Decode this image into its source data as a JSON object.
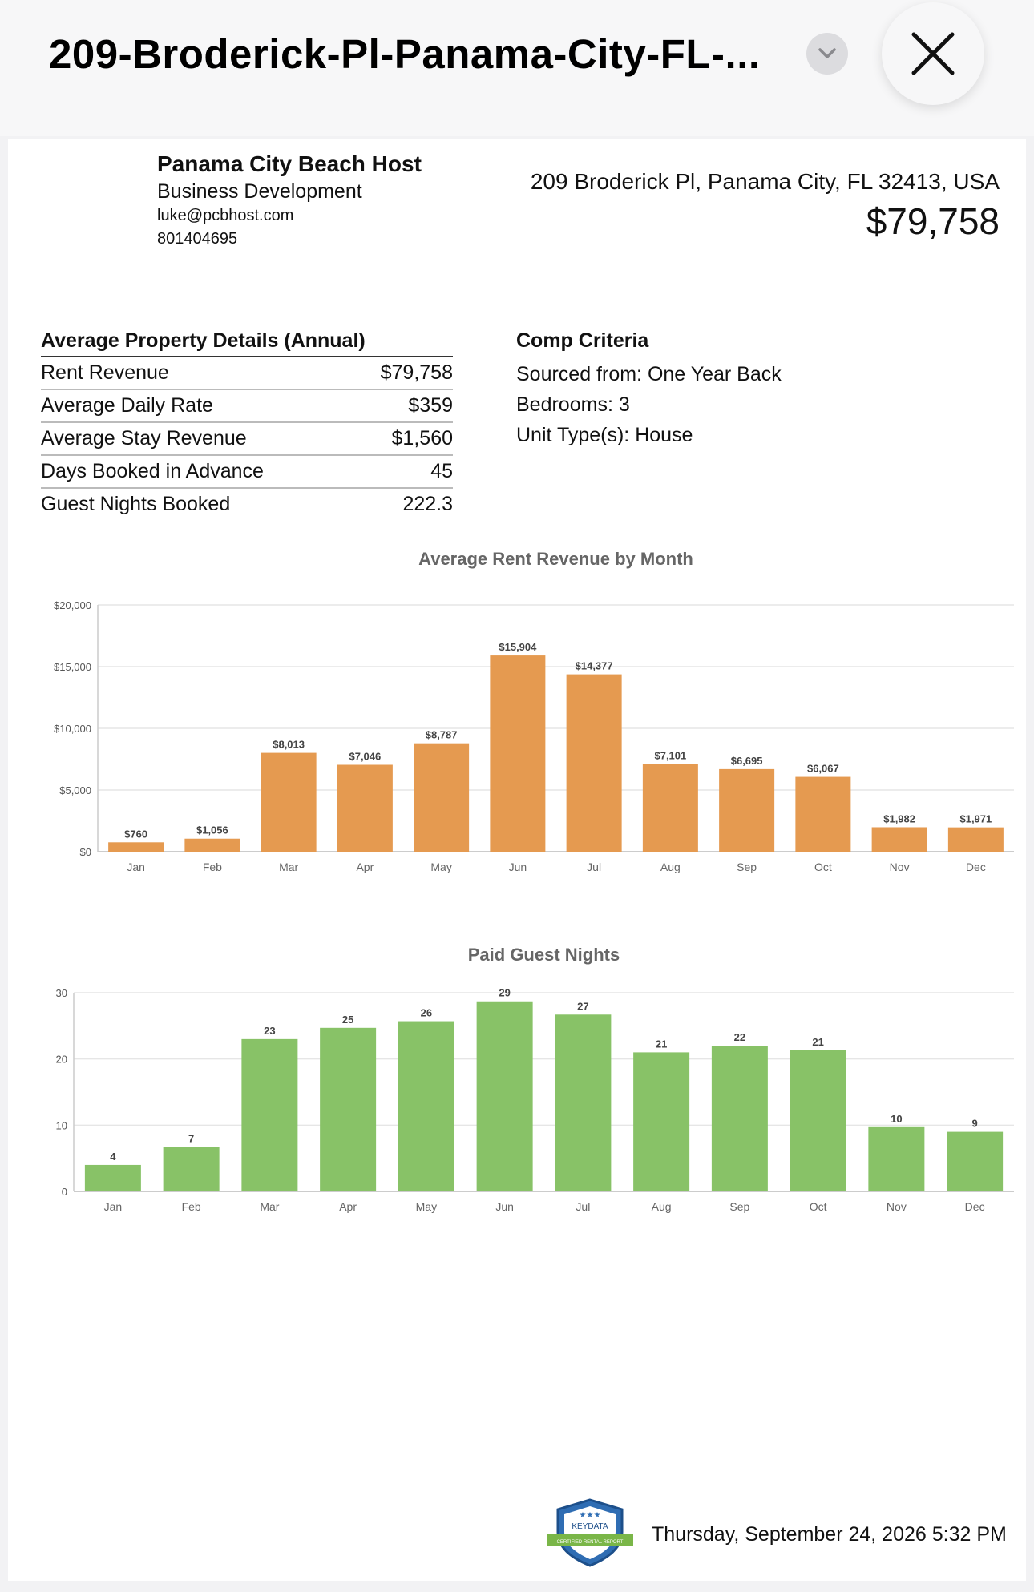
{
  "topbar": {
    "title": "209-Broderick-Pl-Panama-City-FL-...",
    "chevron_icon": "chevron-down-icon",
    "close_icon": "close-icon"
  },
  "header": {
    "host_name": "Panama City Beach Host",
    "host_role": "Business Development",
    "email": "luke@pcbhost.com",
    "phone": "801404695",
    "address": "209 Broderick Pl, Panama City, FL 32413, USA",
    "price": "$79,758"
  },
  "details": {
    "heading": "Average Property Details (Annual)",
    "rows": [
      {
        "label": "Rent Revenue",
        "value": "$79,758"
      },
      {
        "label": "Average Daily Rate",
        "value": "$359"
      },
      {
        "label": "Average Stay Revenue",
        "value": "$1,560"
      },
      {
        "label": "Days Booked in Advance",
        "value": "45"
      },
      {
        "label": "Guest Nights Booked",
        "value": "222.3"
      }
    ]
  },
  "criteria": {
    "heading": "Comp Criteria",
    "sourced": "Sourced from: One Year Back",
    "bedrooms": "Bedrooms: 3",
    "unit_type": "Unit Type(s):  House"
  },
  "chart_data": [
    {
      "type": "bar",
      "title": "Average Rent Revenue by Month",
      "categories": [
        "Jan",
        "Feb",
        "Mar",
        "Apr",
        "May",
        "Jun",
        "Jul",
        "Aug",
        "Sep",
        "Oct",
        "Nov",
        "Dec"
      ],
      "values": [
        760,
        1056,
        8013,
        7046,
        8787,
        15904,
        14377,
        7101,
        6695,
        6067,
        1982,
        1971
      ],
      "value_labels": [
        "$760",
        "$1,056",
        "$8,013",
        "$7,046",
        "$8,787",
        "$15,904",
        "$14,377",
        "$7,101",
        "$6,695",
        "$6,067",
        "$1,982",
        "$1,971"
      ],
      "yticks": [
        "$0",
        "$5,000",
        "$10,000",
        "$15,000",
        "$20,000"
      ],
      "ylim": [
        0,
        20000
      ],
      "color": "#e59a50",
      "grid": true
    },
    {
      "type": "bar",
      "title": "Paid Guest Nights",
      "categories": [
        "Jan",
        "Feb",
        "Mar",
        "Apr",
        "May",
        "Jun",
        "Jul",
        "Aug",
        "Sep",
        "Oct",
        "Nov",
        "Dec"
      ],
      "values": [
        4,
        6.7,
        23,
        24.7,
        25.7,
        28.7,
        26.7,
        21,
        22,
        21.3,
        9.7,
        9
      ],
      "value_labels": [
        "4",
        "7",
        "23",
        "25",
        "26",
        "29",
        "27",
        "21",
        "22",
        "21",
        "10",
        "9"
      ],
      "yticks": [
        "0",
        "10",
        "20",
        "30"
      ],
      "ylim": [
        0,
        30
      ],
      "color": "#88c267",
      "grid": true
    }
  ],
  "footer": {
    "badge_icon": "keydata-certified-badge",
    "badge_text_1": "KEYDATA",
    "badge_text_2": "CERTIFIED RENTAL REPORT",
    "date": "Thursday, September 24, 2026 5:32 PM"
  }
}
